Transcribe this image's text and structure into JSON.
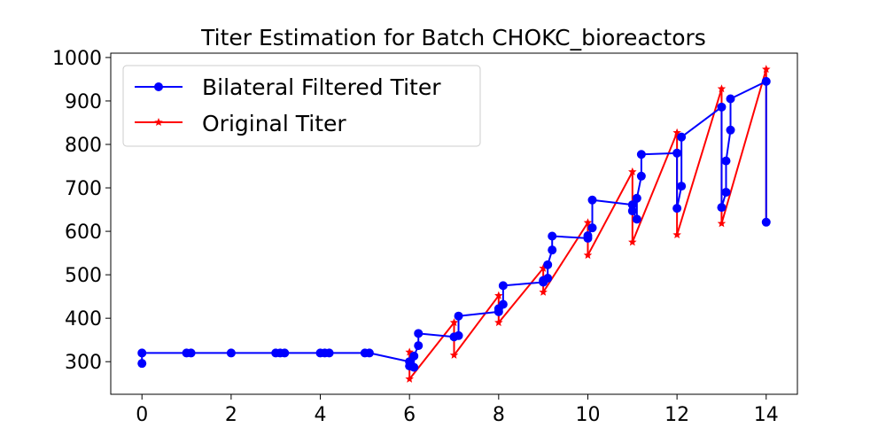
{
  "chart_data": {
    "type": "line",
    "title": "Titer Estimation for Batch CHOKC_bioreactors",
    "xlabel": "",
    "ylabel": "",
    "xlim": [
      -0.7,
      14.7
    ],
    "ylim": [
      225,
      1010
    ],
    "xticks": [
      0,
      2,
      4,
      6,
      8,
      10,
      12,
      14
    ],
    "yticks": [
      300,
      400,
      500,
      600,
      700,
      800,
      900,
      1000
    ],
    "xtick_labels": [
      "0",
      "2",
      "4",
      "6",
      "8",
      "10",
      "12",
      "14"
    ],
    "ytick_labels": [
      "300",
      "400",
      "500",
      "600",
      "700",
      "800",
      "900",
      "1000"
    ],
    "grid": false,
    "legend_position": "upper-left",
    "series": [
      {
        "name": "Bilateral Filtered Titer",
        "color": "#0000ff",
        "marker": "circle",
        "points": [
          [
            0,
            296
          ],
          [
            0,
            320
          ],
          [
            1,
            320
          ],
          [
            1.1,
            320
          ],
          [
            2,
            320
          ],
          [
            3,
            320
          ],
          [
            3.1,
            320
          ],
          [
            3.2,
            320
          ],
          [
            4,
            320
          ],
          [
            4.1,
            320
          ],
          [
            4.2,
            320
          ],
          [
            5,
            320
          ],
          [
            5.1,
            320
          ],
          [
            6,
            300
          ],
          [
            6,
            290
          ],
          [
            6.1,
            287
          ],
          [
            6.1,
            313
          ],
          [
            6.2,
            337
          ],
          [
            6.2,
            365
          ],
          [
            7,
            357
          ],
          [
            7.1,
            360
          ],
          [
            7.1,
            405
          ],
          [
            8,
            415
          ],
          [
            8,
            422
          ],
          [
            8.1,
            432
          ],
          [
            8.1,
            475
          ],
          [
            9,
            483
          ],
          [
            9,
            487
          ],
          [
            9.1,
            492
          ],
          [
            9.1,
            523
          ],
          [
            9.2,
            557
          ],
          [
            9.2,
            589
          ],
          [
            10,
            584
          ],
          [
            10,
            590
          ],
          [
            10.1,
            608
          ],
          [
            10.1,
            672
          ],
          [
            11,
            661
          ],
          [
            11,
            647
          ],
          [
            11.1,
            628
          ],
          [
            11.1,
            676
          ],
          [
            11.2,
            727
          ],
          [
            11.2,
            777
          ],
          [
            12,
            780
          ],
          [
            12,
            653
          ],
          [
            12.1,
            704
          ],
          [
            12.1,
            817
          ],
          [
            13,
            886
          ],
          [
            13,
            655
          ],
          [
            13.1,
            690
          ],
          [
            13.1,
            762
          ],
          [
            13.2,
            833
          ],
          [
            13.2,
            905
          ],
          [
            14,
            945
          ],
          [
            14,
            621
          ]
        ]
      },
      {
        "name": "Original Titer",
        "color": "#ff0000",
        "marker": "star",
        "points": [
          [
            6,
            322
          ],
          [
            6,
            260
          ],
          [
            7,
            390
          ],
          [
            7,
            315
          ],
          [
            8,
            452
          ],
          [
            8,
            390
          ],
          [
            9,
            515
          ],
          [
            9,
            460
          ],
          [
            10,
            620
          ],
          [
            10,
            545
          ],
          [
            11,
            737
          ],
          [
            11,
            575
          ],
          [
            12,
            827
          ],
          [
            12,
            592
          ],
          [
            13,
            928
          ],
          [
            13,
            618
          ],
          [
            14,
            973
          ],
          [
            14,
            622
          ]
        ]
      }
    ]
  }
}
